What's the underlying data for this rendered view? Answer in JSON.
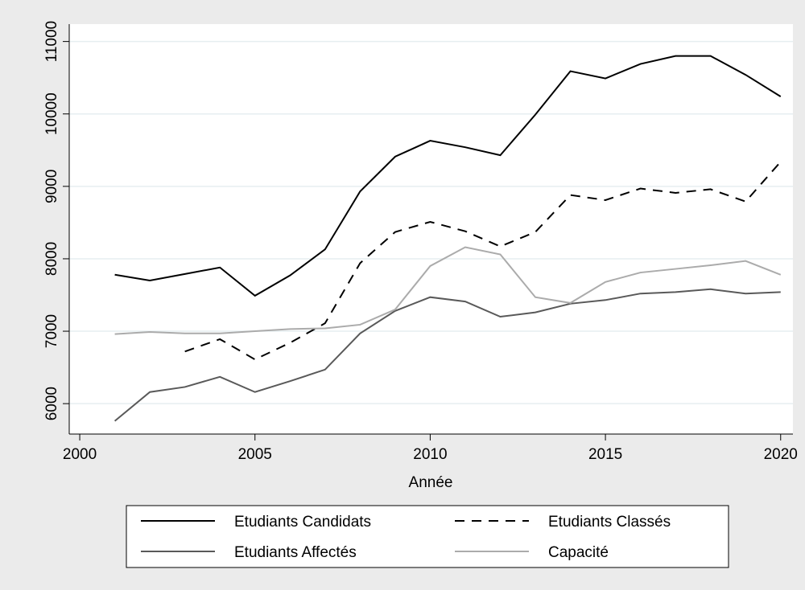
{
  "chart_data": {
    "type": "line",
    "xlabel": "Année",
    "x": [
      2001,
      2002,
      2003,
      2004,
      2005,
      2006,
      2007,
      2008,
      2009,
      2010,
      2011,
      2012,
      2013,
      2014,
      2015,
      2016,
      2017,
      2018,
      2019,
      2020
    ],
    "series": [
      {
        "name": "Etudiants Candidats",
        "color": "#000000",
        "dash": false,
        "values": [
          7780,
          7700,
          7790,
          7880,
          7490,
          7770,
          8130,
          8930,
          9410,
          9630,
          9540,
          9430,
          9990,
          10590,
          10490,
          10690,
          10800,
          10800,
          10540,
          10240
        ]
      },
      {
        "name": "Etudiants Classés",
        "color": "#000000",
        "dash": true,
        "values": [
          null,
          null,
          6720,
          6890,
          6610,
          6840,
          7110,
          7940,
          8370,
          8510,
          8380,
          8170,
          8370,
          8880,
          8810,
          8970,
          8910,
          8960,
          8790,
          9340
        ]
      },
      {
        "name": "Etudiants Affectés",
        "color": "#595959",
        "dash": false,
        "values": [
          5760,
          6160,
          6230,
          6370,
          6160,
          6310,
          6470,
          6970,
          7280,
          7470,
          7410,
          7200,
          7260,
          7380,
          7430,
          7520,
          7540,
          7580,
          7520,
          7540
        ]
      },
      {
        "name": "Capacité",
        "color": "#ababab",
        "dash": false,
        "values": [
          6960,
          6990,
          6970,
          6970,
          7000,
          7030,
          7040,
          7090,
          7300,
          7900,
          8160,
          8060,
          7470,
          7390,
          7680,
          7810,
          7860,
          7910,
          7970,
          7780
        ]
      }
    ],
    "xlim": [
      1999.7,
      2020.35
    ],
    "xticks": [
      2000,
      2005,
      2010,
      2015,
      2020
    ],
    "ylim": [
      5580,
      11240
    ],
    "yticks": [
      6000,
      7000,
      8000,
      9000,
      10000,
      11000
    ],
    "grid": true,
    "legend": "bottom"
  }
}
